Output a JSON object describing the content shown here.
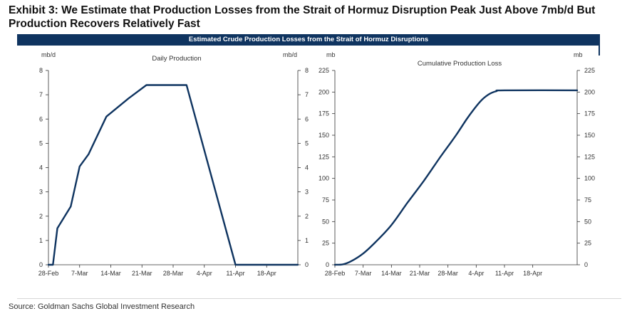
{
  "headline": "Exhibit 3: We Estimate that Production Losses from the Strait of Hormuz Disruption Peak Just Above 7mb/d But Production Recovers Relatively Fast",
  "banner": "Estimated Crude Production Losses from the Strait of Hormuz Disruptions",
  "source": "Source: Goldman Sachs Global Investment Research",
  "colors": {
    "line": "#0f3460",
    "banner": "#0f3460",
    "axis": "#333333"
  },
  "chart_data": [
    {
      "type": "line",
      "title": "Daily Production",
      "ylabel_left": "mb/d",
      "ylabel_right": "mb/d",
      "ylim": [
        0,
        8
      ],
      "yticks": [
        0,
        1,
        2,
        3,
        4,
        5,
        6,
        7,
        8
      ],
      "xlim": [
        "2026-02-28",
        "2026-04-25"
      ],
      "xtick_labels": [
        "28-Feb",
        "7-Mar",
        "14-Mar",
        "21-Mar",
        "28-Mar",
        "4-Apr",
        "11-Apr",
        "18-Apr"
      ],
      "xticks": [
        "2026-02-28",
        "2026-03-07",
        "2026-03-14",
        "2026-03-21",
        "2026-03-28",
        "2026-04-04",
        "2026-04-11",
        "2026-04-18"
      ],
      "grid": false,
      "series": [
        {
          "x": [
            "2026-02-28",
            "2026-03-01",
            "2026-03-02",
            "2026-03-05",
            "2026-03-07",
            "2026-03-09",
            "2026-03-13",
            "2026-03-18",
            "2026-03-22",
            "2026-03-31",
            "2026-04-11",
            "2026-04-25"
          ],
          "y": [
            0,
            0,
            1.5,
            2.4,
            4.05,
            4.55,
            6.1,
            6.85,
            7.4,
            7.4,
            0,
            0
          ]
        }
      ]
    },
    {
      "type": "line",
      "title": "Cumulative Production Loss",
      "ylabel_left": "mb",
      "ylabel_right": "mb",
      "ylim": [
        0,
        225
      ],
      "yticks": [
        0,
        25,
        50,
        75,
        100,
        125,
        150,
        175,
        200,
        225
      ],
      "xlim": [
        "2026-02-28",
        "2026-04-29"
      ],
      "xtick_labels": [
        "28-Feb",
        "7-Mar",
        "14-Mar",
        "21-Mar",
        "28-Mar",
        "4-Apr",
        "11-Apr",
        "18-Apr"
      ],
      "xticks": [
        "2026-02-28",
        "2026-03-07",
        "2026-03-14",
        "2026-03-21",
        "2026-03-28",
        "2026-04-04",
        "2026-04-11",
        "2026-04-18"
      ],
      "grid": false,
      "series": [
        {
          "x": [
            "2026-02-28",
            "2026-03-02",
            "2026-03-04",
            "2026-03-07",
            "2026-03-10",
            "2026-03-14",
            "2026-03-18",
            "2026-03-22",
            "2026-03-26",
            "2026-03-30",
            "2026-04-02",
            "2026-04-05",
            "2026-04-07",
            "2026-04-09",
            "2026-04-11",
            "2026-04-29"
          ],
          "y": [
            0,
            0.5,
            4,
            13,
            26,
            46,
            72,
            97,
            124,
            150,
            171,
            189,
            197,
            201,
            202,
            202
          ]
        }
      ]
    }
  ]
}
